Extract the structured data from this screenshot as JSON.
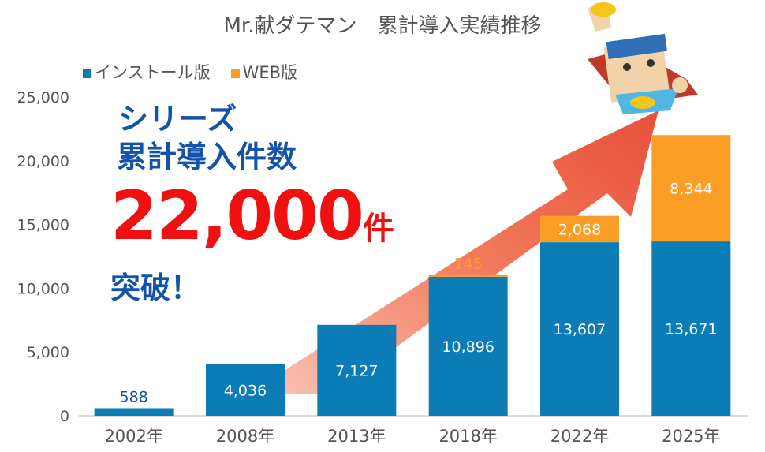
{
  "chart_data": {
    "type": "bar",
    "stacked": true,
    "title": "Mr.献ダテマン　累計導入実績推移",
    "categories": [
      "2002年",
      "2008年",
      "2013年",
      "2018年",
      "2022年",
      "2025年"
    ],
    "series": [
      {
        "name": "インストール版",
        "color": "#0b7cb5",
        "values": [
          588,
          4036,
          7127,
          10896,
          13607,
          13671
        ],
        "labels": [
          "588",
          "4,036",
          "7,127",
          "10,896",
          "13,607",
          "13,671"
        ]
      },
      {
        "name": "WEB版",
        "color": "#f99d25",
        "values": [
          0,
          0,
          0,
          145,
          2068,
          8344
        ],
        "labels": [
          "",
          "",
          "",
          "145",
          "2,068",
          "8,344"
        ]
      }
    ],
    "ylim": [
      0,
      25000
    ],
    "yticks": [
      "0",
      "5,000",
      "10,000",
      "15,000",
      "20,000",
      "25,000"
    ],
    "ytick_values": [
      0,
      5000,
      10000,
      15000,
      20000,
      25000
    ],
    "grid": false,
    "legend": "top-left"
  },
  "promo": {
    "line1": "シリーズ",
    "line2": "累計導入件数",
    "number": "22,000",
    "unit": "件",
    "line4": "突破！"
  }
}
